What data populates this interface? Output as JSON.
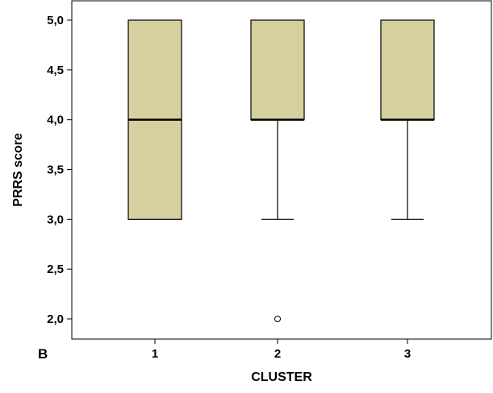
{
  "panel_label": "B",
  "chart_data": {
    "type": "boxplot",
    "xlabel": "CLUSTER",
    "ylabel": "PRRS score",
    "ylim": [
      1.88,
      5.1
    ],
    "yticks": [
      2.0,
      2.5,
      3.0,
      3.5,
      4.0,
      4.5,
      5.0
    ],
    "ytick_labels": [
      "2,0",
      "2,5",
      "3,0",
      "3,5",
      "4,0",
      "4,5",
      "5,0"
    ],
    "categories": [
      "1",
      "2",
      "3"
    ],
    "grid": false,
    "box_color": "#d6cf9e",
    "boxes": [
      {
        "category": "1",
        "whisker_low": 3.0,
        "q1": 3.0,
        "median": 4.0,
        "q3": 5.0,
        "whisker_high": 5.0,
        "outliers": []
      },
      {
        "category": "2",
        "whisker_low": 3.0,
        "q1": 4.0,
        "median": 4.0,
        "q3": 5.0,
        "whisker_high": 5.0,
        "outliers": [
          2.0
        ]
      },
      {
        "category": "3",
        "whisker_low": 3.0,
        "q1": 4.0,
        "median": 4.0,
        "q3": 5.0,
        "whisker_high": 5.0,
        "outliers": []
      }
    ]
  }
}
